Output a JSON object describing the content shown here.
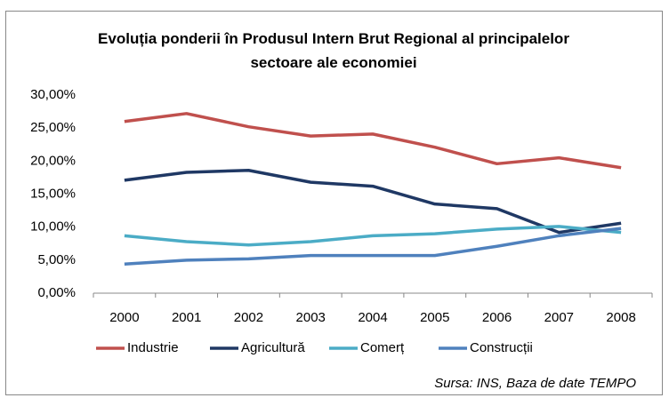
{
  "chart_data": {
    "type": "line",
    "title": "Evoluția ponderii în Produsul Intern Brut Regional al principalelor sectoare ale economiei",
    "categories": [
      "2000",
      "2001",
      "2002",
      "2003",
      "2004",
      "2005",
      "2006",
      "2007",
      "2008"
    ],
    "series": [
      {
        "name": "Industrie",
        "color": "#c0504d",
        "values": [
          26.0,
          27.2,
          25.2,
          23.8,
          24.1,
          22.1,
          19.6,
          20.5,
          19.0
        ]
      },
      {
        "name": "Agricultură",
        "color": "#1f3864",
        "values": [
          17.1,
          18.3,
          18.6,
          16.8,
          16.2,
          13.5,
          12.8,
          9.2,
          10.6
        ]
      },
      {
        "name": "Comerț",
        "color": "#4bacc6",
        "values": [
          8.7,
          7.8,
          7.3,
          7.8,
          8.7,
          9.0,
          9.7,
          10.1,
          9.2
        ]
      },
      {
        "name": "Construcții",
        "color": "#4f81bd",
        "values": [
          4.4,
          5.0,
          5.2,
          5.7,
          5.7,
          5.7,
          7.1,
          8.7,
          9.8
        ]
      }
    ],
    "ylim": [
      0,
      30
    ],
    "yticks": [
      {
        "value": 0,
        "label": "0,00%"
      },
      {
        "value": 5,
        "label": "5,00%"
      },
      {
        "value": 10,
        "label": "10,00%"
      },
      {
        "value": 15,
        "label": "15,00%"
      },
      {
        "value": 20,
        "label": "20,00%"
      },
      {
        "value": 25,
        "label": "25,00%"
      },
      {
        "value": 30,
        "label": "30,00%"
      }
    ],
    "legend": "bottom",
    "source": "Sursa: INS, Baza de date TEMPO"
  }
}
